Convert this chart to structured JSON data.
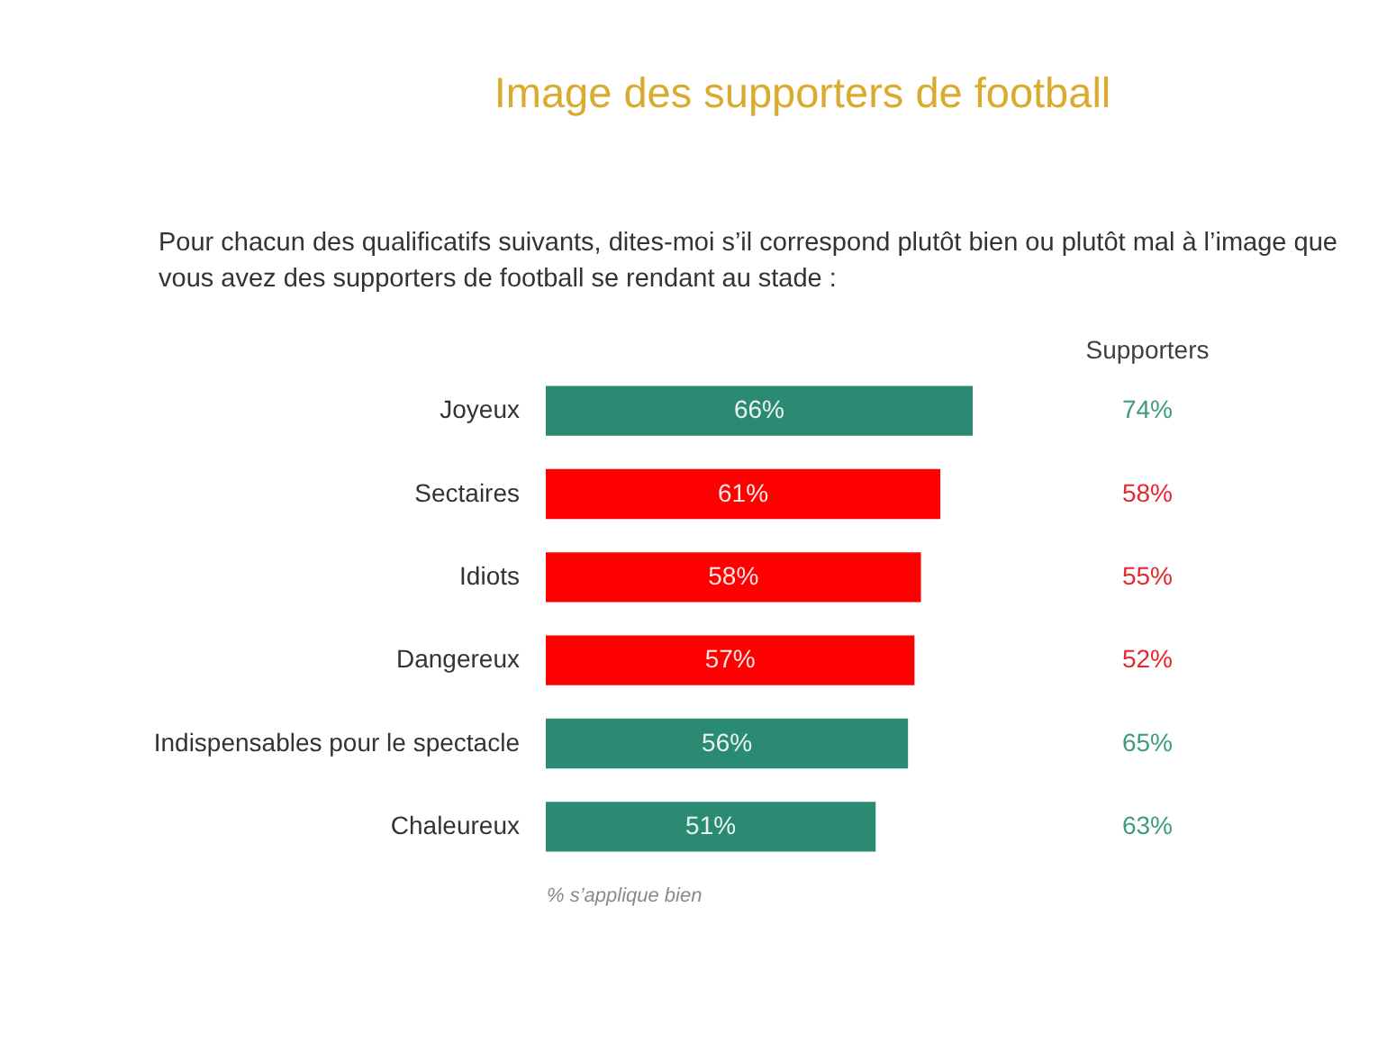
{
  "chart_data": [
    {
      "type": "bar",
      "orientation": "horizontal",
      "title": "Image des supporters de football",
      "subtitle": "Pour chacun des qualificatifs suivants, dites-moi s’il correspond plutôt bien ou plutôt mal à l’image que vous avez des supporters de football se rendant au stade :",
      "xlabel": "% s’applique bien",
      "tick_labels": "y",
      "categories": [
        "Joyeux",
        "Sectaires",
        "Idiots",
        "Dangereux",
        "Indispensables pour le spectacle",
        "Chaleureux"
      ],
      "values": [
        66,
        61,
        58,
        57,
        56,
        51
      ],
      "colors": [
        "#2a8a72",
        "#ff0000",
        "#ff0000",
        "#ff0000",
        "#2a8a72",
        "#2a8a72"
      ],
      "value_labels": [
        "66%",
        "61%",
        "58%",
        "57%",
        "56%",
        "51%"
      ]
    },
    {
      "type": "other",
      "title": "Supporters",
      "categories": [
        null,
        null,
        null,
        null,
        null,
        null
      ],
      "values": [
        74,
        58,
        55,
        52,
        65,
        63
      ],
      "colors": [
        "#3d9b82",
        "#e8242c",
        "#e8242c",
        "#e8242c",
        "#3d9b82",
        "#3d9b82"
      ],
      "value_labels": [
        "74%",
        "58%",
        "55%",
        "52%",
        "65%",
        "63%"
      ]
    }
  ]
}
